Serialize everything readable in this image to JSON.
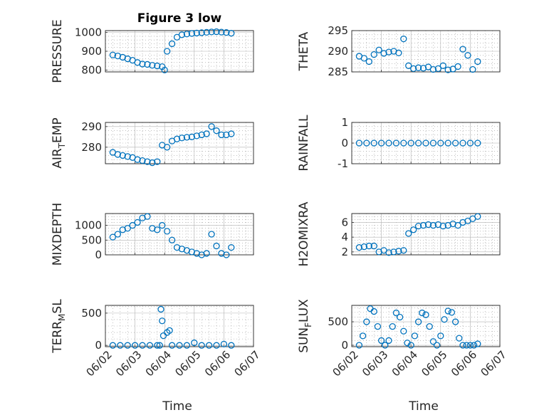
{
  "figure_title": "Figure 3 low",
  "colors": {
    "marker": "#0072bd",
    "axes": "#262626",
    "grid": "#b0b0b0"
  },
  "chart_data": [
    {
      "type": "scatter",
      "id": "pressure",
      "ylabel": "PRESSURE",
      "x": [
        "06/02 06:00",
        "06/02 10:00",
        "06/02 14:00",
        "06/02 18:00",
        "06/02 22:00",
        "06/03 02:00",
        "06/03 06:00",
        "06/03 10:00",
        "06/03 14:00",
        "06/03 18:00",
        "06/03 22:00",
        "06/04 00:00",
        "06/04 02:00",
        "06/04 06:00",
        "06/04 10:00",
        "06/04 14:00",
        "06/04 18:00",
        "06/04 22:00",
        "06/05 02:00",
        "06/05 06:00",
        "06/05 10:00",
        "06/05 14:00",
        "06/05 18:00",
        "06/05 22:00",
        "06/06 02:00",
        "06/06 06:00"
      ],
      "y": [
        880,
        875,
        868,
        860,
        852,
        840,
        832,
        830,
        825,
        822,
        818,
        800,
        900,
        940,
        975,
        988,
        992,
        995,
        997,
        999,
        1001,
        1003,
        1004,
        1002,
        1000,
        996
      ],
      "ylim": [
        790,
        1010
      ],
      "yticks": [
        800,
        900,
        1000
      ],
      "xlim": [
        "06/02",
        "06/07"
      ],
      "xticks": [
        "06/02",
        "06/03",
        "06/04",
        "06/05",
        "06/06",
        "06/07"
      ],
      "show_xticklabels": false,
      "grid": true,
      "minor_grid": true
    },
    {
      "type": "scatter",
      "id": "theta",
      "ylabel": "THETA",
      "x": [
        "06/02 06:00",
        "06/02 10:00",
        "06/02 14:00",
        "06/02 18:00",
        "06/02 22:00",
        "06/03 02:00",
        "06/03 06:00",
        "06/03 10:00",
        "06/03 14:00",
        "06/03 18:00",
        "06/03 22:00",
        "06/04 02:00",
        "06/04 06:00",
        "06/04 10:00",
        "06/04 14:00",
        "06/04 18:00",
        "06/04 22:00",
        "06/05 02:00",
        "06/05 06:00",
        "06/05 10:00",
        "06/05 14:00",
        "06/05 18:00",
        "06/05 22:00",
        "06/06 02:00",
        "06/06 06:00"
      ],
      "y": [
        288.8,
        288.3,
        287.5,
        289.2,
        290.3,
        289.5,
        289.8,
        290.0,
        289.6,
        293.0,
        286.5,
        285.8,
        286.0,
        285.9,
        286.2,
        285.6,
        285.8,
        286.5,
        285.5,
        285.7,
        286.3,
        290.5,
        289.0,
        285.6,
        287.5
      ],
      "ylim": [
        285,
        295
      ],
      "yticks": [
        285,
        290,
        295
      ],
      "xlim": [
        "06/02",
        "06/07"
      ],
      "xticks": [
        "06/02",
        "06/03",
        "06/04",
        "06/05",
        "06/06",
        "06/07"
      ],
      "show_xticklabels": false,
      "grid": true,
      "minor_grid": true
    },
    {
      "type": "scatter",
      "id": "air_temp",
      "ylabel": "AIR_TEMP",
      "ylabel_parts": [
        "AIR",
        "T",
        "EMP"
      ],
      "x": [
        "06/02 06:00",
        "06/02 10:00",
        "06/02 14:00",
        "06/02 18:00",
        "06/02 22:00",
        "06/03 02:00",
        "06/03 06:00",
        "06/03 10:00",
        "06/03 14:00",
        "06/03 18:00",
        "06/03 22:00",
        "06/04 02:00",
        "06/04 06:00",
        "06/04 10:00",
        "06/04 14:00",
        "06/04 18:00",
        "06/04 22:00",
        "06/05 02:00",
        "06/05 06:00",
        "06/05 10:00",
        "06/05 14:00",
        "06/05 18:00",
        "06/05 22:00",
        "06/06 02:00",
        "06/06 06:00"
      ],
      "y": [
        277.5,
        276.5,
        276.0,
        275.5,
        275.0,
        274.0,
        273.5,
        273.0,
        272.5,
        273.0,
        281.0,
        280.0,
        283.0,
        284.0,
        284.5,
        284.8,
        285.0,
        285.5,
        286.0,
        286.5,
        290.0,
        288.0,
        286.0,
        286.0,
        286.5
      ],
      "ylim": [
        272,
        292
      ],
      "yticks": [
        280,
        290
      ],
      "xlim": [
        "06/02",
        "06/07"
      ],
      "xticks": [
        "06/02",
        "06/03",
        "06/04",
        "06/05",
        "06/06",
        "06/07"
      ],
      "show_xticklabels": false,
      "grid": true,
      "minor_grid": true
    },
    {
      "type": "scatter",
      "id": "rainfall",
      "ylabel": "RAINFALL",
      "x": [
        "06/02 06:00",
        "06/02 12:00",
        "06/02 18:00",
        "06/03 00:00",
        "06/03 06:00",
        "06/03 12:00",
        "06/03 18:00",
        "06/04 00:00",
        "06/04 06:00",
        "06/04 12:00",
        "06/04 18:00",
        "06/05 00:00",
        "06/05 06:00",
        "06/05 12:00",
        "06/05 18:00",
        "06/06 00:00",
        "06/06 06:00"
      ],
      "y": [
        0,
        0,
        0,
        0,
        0,
        0,
        0,
        0,
        0,
        0,
        0,
        0,
        0,
        0,
        0,
        0,
        0
      ],
      "ylim": [
        -1,
        1
      ],
      "yticks": [
        -1,
        0,
        1
      ],
      "xlim": [
        "06/02",
        "06/07"
      ],
      "xticks": [
        "06/02",
        "06/03",
        "06/04",
        "06/05",
        "06/06",
        "06/07"
      ],
      "show_xticklabels": false,
      "grid": true,
      "minor_grid": true
    },
    {
      "type": "scatter",
      "id": "mixdepth",
      "ylabel": "MIXDEPTH",
      "x": [
        "06/02 06:00",
        "06/02 10:00",
        "06/02 14:00",
        "06/02 18:00",
        "06/02 22:00",
        "06/03 02:00",
        "06/03 06:00",
        "06/03 10:00",
        "06/03 14:00",
        "06/03 18:00",
        "06/03 22:00",
        "06/04 02:00",
        "06/04 06:00",
        "06/04 10:00",
        "06/04 14:00",
        "06/04 18:00",
        "06/04 22:00",
        "06/05 02:00",
        "06/05 06:00",
        "06/05 10:00",
        "06/05 14:00",
        "06/05 18:00",
        "06/05 22:00",
        "06/06 02:00",
        "06/06 06:00"
      ],
      "y": [
        600,
        700,
        850,
        900,
        1000,
        1100,
        1250,
        1300,
        900,
        850,
        1000,
        800,
        500,
        250,
        200,
        150,
        100,
        50,
        0,
        50,
        700,
        300,
        50,
        0,
        250
      ],
      "ylim": [
        0,
        1400
      ],
      "yticks": [
        0,
        500,
        1000
      ],
      "xlim": [
        "06/02",
        "06/07"
      ],
      "xticks": [
        "06/02",
        "06/03",
        "06/04",
        "06/05",
        "06/06",
        "06/07"
      ],
      "show_xticklabels": false,
      "grid": true,
      "minor_grid": true
    },
    {
      "type": "scatter",
      "id": "h2omixra",
      "ylabel": "H2OMIXRA",
      "x": [
        "06/02 06:00",
        "06/02 10:00",
        "06/02 14:00",
        "06/02 18:00",
        "06/02 22:00",
        "06/03 02:00",
        "06/03 06:00",
        "06/03 10:00",
        "06/03 14:00",
        "06/03 18:00",
        "06/03 22:00",
        "06/04 02:00",
        "06/04 06:00",
        "06/04 10:00",
        "06/04 14:00",
        "06/04 18:00",
        "06/04 22:00",
        "06/05 02:00",
        "06/05 06:00",
        "06/05 10:00",
        "06/05 14:00",
        "06/05 18:00",
        "06/05 22:00",
        "06/06 02:00",
        "06/06 06:00"
      ],
      "y": [
        2.6,
        2.7,
        2.8,
        2.8,
        2.0,
        2.2,
        1.9,
        2.0,
        2.1,
        2.2,
        4.5,
        5.0,
        5.5,
        5.6,
        5.7,
        5.6,
        5.7,
        5.5,
        5.6,
        5.8,
        5.6,
        6.0,
        6.2,
        6.5,
        6.8
      ],
      "ylim": [
        1.6,
        7.2
      ],
      "yticks": [
        2,
        4,
        6
      ],
      "xlim": [
        "06/02",
        "06/07"
      ],
      "xticks": [
        "06/02",
        "06/03",
        "06/04",
        "06/05",
        "06/06",
        "06/07"
      ],
      "show_xticklabels": false,
      "grid": true,
      "minor_grid": true
    },
    {
      "type": "scatter",
      "id": "terr_msl",
      "ylabel": "TERR_MSL",
      "ylabel_parts": [
        "TERR",
        "M",
        "SL"
      ],
      "x": [
        "06/02 06:00",
        "06/02 12:00",
        "06/02 18:00",
        "06/03 00:00",
        "06/03 06:00",
        "06/03 12:00",
        "06/03 18:00",
        "06/03 20:00",
        "06/03 21:00",
        "06/03 22:00",
        "06/03 23:00",
        "06/04 02:00",
        "06/04 04:00",
        "06/04 06:00",
        "06/04 12:00",
        "06/04 18:00",
        "06/05 00:00",
        "06/05 06:00",
        "06/05 12:00",
        "06/05 18:00",
        "06/06 00:00",
        "06/06 06:00"
      ],
      "y": [
        0,
        0,
        0,
        0,
        0,
        0,
        0,
        0,
        560,
        380,
        150,
        200,
        230,
        0,
        0,
        0,
        40,
        0,
        0,
        0,
        20,
        0
      ],
      "ylim": [
        -20,
        620
      ],
      "yticks": [
        0,
        500
      ],
      "xlim": [
        "06/02",
        "06/07"
      ],
      "xticks": [
        "06/02",
        "06/03",
        "06/04",
        "06/05",
        "06/06",
        "06/07"
      ],
      "xticklabels": [
        "06/02",
        "06/03",
        "06/04",
        "06/05",
        "06/06",
        "06/07"
      ],
      "show_xticklabels": true,
      "xlabel": "Time",
      "grid": true,
      "minor_grid": true
    },
    {
      "type": "scatter",
      "id": "sun_flux",
      "ylabel": "SUN_FLUX",
      "ylabel_parts": [
        "SUN",
        "F",
        "LUX"
      ],
      "x": [
        "06/02 06:00",
        "06/02 09:00",
        "06/02 12:00",
        "06/02 15:00",
        "06/02 18:00",
        "06/02 21:00",
        "06/03 00:00",
        "06/03 03:00",
        "06/03 06:00",
        "06/03 09:00",
        "06/03 12:00",
        "06/03 15:00",
        "06/03 18:00",
        "06/03 21:00",
        "06/04 00:00",
        "06/04 03:00",
        "06/04 06:00",
        "06/04 09:00",
        "06/04 12:00",
        "06/04 15:00",
        "06/04 18:00",
        "06/04 21:00",
        "06/05 00:00",
        "06/05 03:00",
        "06/05 06:00",
        "06/05 09:00",
        "06/05 12:00",
        "06/05 15:00",
        "06/05 18:00",
        "06/05 21:00",
        "06/06 00:00",
        "06/06 03:00",
        "06/06 06:00"
      ],
      "y": [
        0,
        200,
        500,
        780,
        720,
        400,
        100,
        0,
        100,
        400,
        690,
        600,
        300,
        50,
        0,
        200,
        500,
        690,
        650,
        400,
        80,
        0,
        200,
        550,
        730,
        700,
        500,
        150,
        0,
        0,
        0,
        0,
        30
      ],
      "ylim": [
        -30,
        850
      ],
      "yticks": [
        0,
        500
      ],
      "xlim": [
        "06/02",
        "06/07"
      ],
      "xticks": [
        "06/02",
        "06/03",
        "06/04",
        "06/05",
        "06/06",
        "06/07"
      ],
      "xticklabels": [
        "06/02",
        "06/03",
        "06/04",
        "06/05",
        "06/06",
        "06/07"
      ],
      "show_xticklabels": true,
      "xlabel": "Time",
      "grid": true,
      "minor_grid": true
    }
  ]
}
